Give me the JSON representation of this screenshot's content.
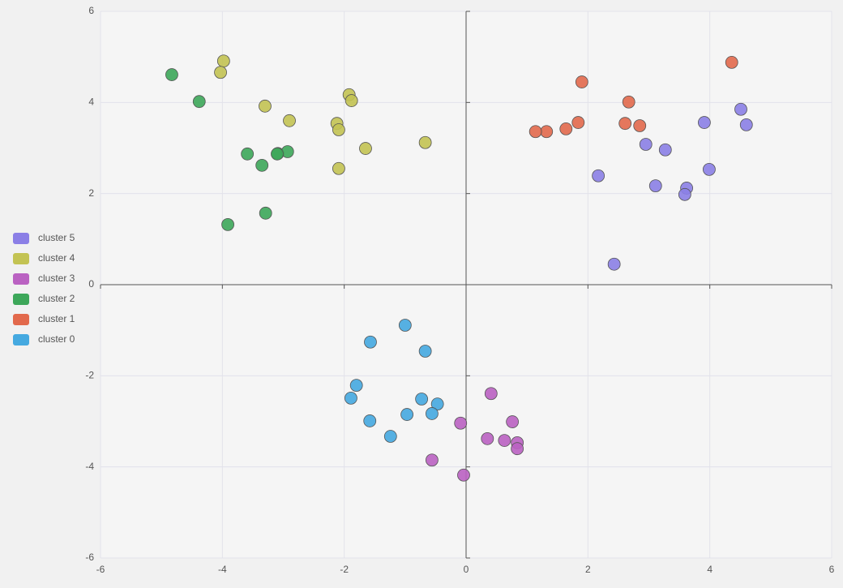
{
  "chart_data": {
    "type": "scatter",
    "xlim": [
      -6,
      6
    ],
    "ylim": [
      -6,
      6
    ],
    "xticks": [
      -6,
      -4,
      -2,
      0,
      2,
      4,
      6
    ],
    "yticks": [
      -6,
      -4,
      -2,
      0,
      2,
      4,
      6
    ],
    "grid": true,
    "legend": "left",
    "series": [
      {
        "name": "cluster 5",
        "color": "#8b7fe6",
        "x": [
          4.51,
          4.6,
          3.91,
          3.99,
          2.95,
          3.27,
          2.17,
          3.11,
          3.62,
          3.59,
          2.43
        ],
        "y": [
          3.85,
          3.51,
          3.56,
          2.53,
          3.08,
          2.96,
          2.39,
          2.17,
          2.12,
          1.98,
          0.45
        ]
      },
      {
        "name": "cluster 4",
        "color": "#c3c353",
        "x": [
          -3.98,
          -4.03,
          -3.3,
          -2.9,
          -1.92,
          -1.88,
          -2.12,
          -2.09,
          -1.65,
          -0.67,
          -2.09
        ],
        "y": [
          4.91,
          4.66,
          3.92,
          3.6,
          4.17,
          4.04,
          3.54,
          3.4,
          2.99,
          3.12,
          2.55
        ]
      },
      {
        "name": "cluster 3",
        "color": "#ba62c2",
        "x": [
          0.41,
          0.76,
          -0.09,
          0.35,
          0.63,
          0.84,
          0.84,
          -0.56,
          -0.04
        ],
        "y": [
          -2.39,
          -3.01,
          -3.04,
          -3.38,
          -3.42,
          -3.47,
          -3.6,
          -3.85,
          -4.18
        ]
      },
      {
        "name": "cluster 2",
        "color": "#3da75a",
        "x": [
          -4.83,
          -4.38,
          -3.59,
          -3.35,
          -3.09,
          -2.93,
          -3.1,
          -3.91,
          -3.29
        ],
        "y": [
          4.61,
          4.02,
          2.87,
          2.62,
          2.88,
          2.92,
          2.87,
          1.32,
          1.57
        ]
      },
      {
        "name": "cluster 1",
        "color": "#e2694c",
        "x": [
          4.36,
          1.9,
          2.67,
          2.61,
          2.85,
          1.84,
          1.64,
          1.32,
          1.14
        ],
        "y": [
          4.88,
          4.45,
          4.01,
          3.54,
          3.49,
          3.56,
          3.42,
          3.36,
          3.36
        ]
      },
      {
        "name": "cluster 0",
        "color": "#45a9e0",
        "x": [
          -1.0,
          -1.57,
          -0.67,
          -1.8,
          -1.89,
          -0.73,
          -0.47,
          -0.56,
          -0.97,
          -1.58,
          -1.24
        ],
        "y": [
          -0.89,
          -1.26,
          -1.46,
          -2.21,
          -2.49,
          -2.51,
          -2.62,
          -2.83,
          -2.85,
          -2.99,
          -3.33
        ]
      }
    ]
  }
}
